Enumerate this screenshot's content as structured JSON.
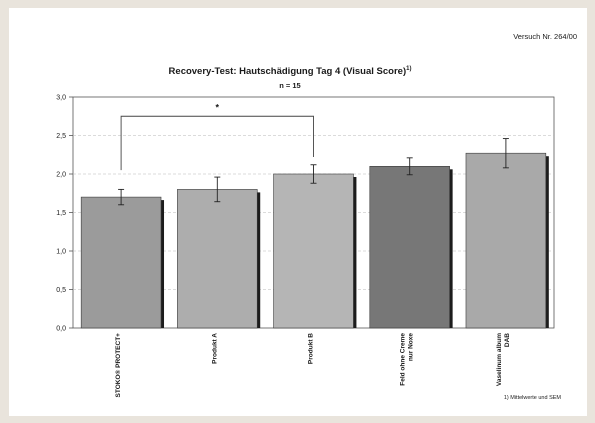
{
  "trial_label": "Versuch Nr. 264/00",
  "footnote": "1) Mittelwerte und SEM",
  "chart_data": {
    "type": "bar",
    "title": "Recovery-Test: Hautschädigung Tag 4 (Visual Score)",
    "title_superscript": "1)",
    "subtitle": "n = 15",
    "xlabel": "",
    "ylabel": "",
    "ylim": [
      0,
      3
    ],
    "yticks": [
      "0,0",
      "0,5",
      "1,0",
      "1,5",
      "2,0",
      "2,5",
      "3,0"
    ],
    "grid": true,
    "categories": [
      [
        "STOKO® PROTECT+"
      ],
      [
        "Produkt A"
      ],
      [
        "Produkt B"
      ],
      [
        "Feld ohne Creme",
        "nur Noxe"
      ],
      [
        "Vaselinum album",
        "DAB"
      ]
    ],
    "values": [
      1.7,
      1.8,
      2.0,
      2.1,
      2.27
    ],
    "errors": [
      0.1,
      0.16,
      0.12,
      0.11,
      0.19
    ],
    "bar_colors": [
      "#9b9b9b",
      "#adadad",
      "#b5b5b5",
      "#777777",
      "#a9a9a9"
    ],
    "significance": {
      "from": 0,
      "to": 2,
      "label": "*",
      "level": 2.75
    }
  }
}
